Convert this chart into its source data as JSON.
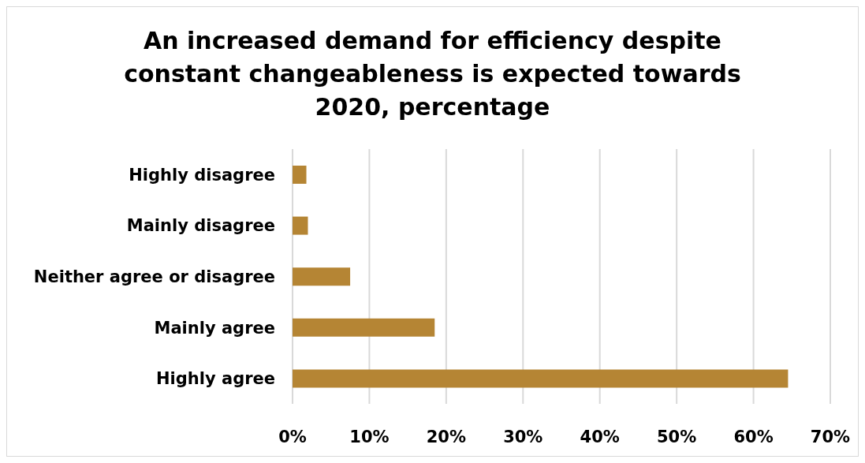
{
  "chart_data": {
    "type": "bar",
    "orientation": "horizontal",
    "title": "An increased demand for efficiency despite constant changeableness is expected towards 2020, percentage",
    "categories": [
      "Highly disagree",
      "Mainly disagree",
      "Neither agree or disagree",
      "Mainly agree",
      "Highly agree"
    ],
    "values": [
      1.8,
      2.0,
      7.5,
      18.5,
      64.5
    ],
    "color": "#b58534",
    "xlim": [
      0,
      70
    ],
    "xticks": [
      {
        "value": 0,
        "label": "0%"
      },
      {
        "value": 10,
        "label": "10%"
      },
      {
        "value": 20,
        "label": "20%"
      },
      {
        "value": 30,
        "label": "30%"
      },
      {
        "value": 40,
        "label": "40%"
      },
      {
        "value": 50,
        "label": "50%"
      },
      {
        "value": 60,
        "label": "60%"
      },
      {
        "value": 70,
        "label": "70%"
      }
    ],
    "grid": "x"
  }
}
